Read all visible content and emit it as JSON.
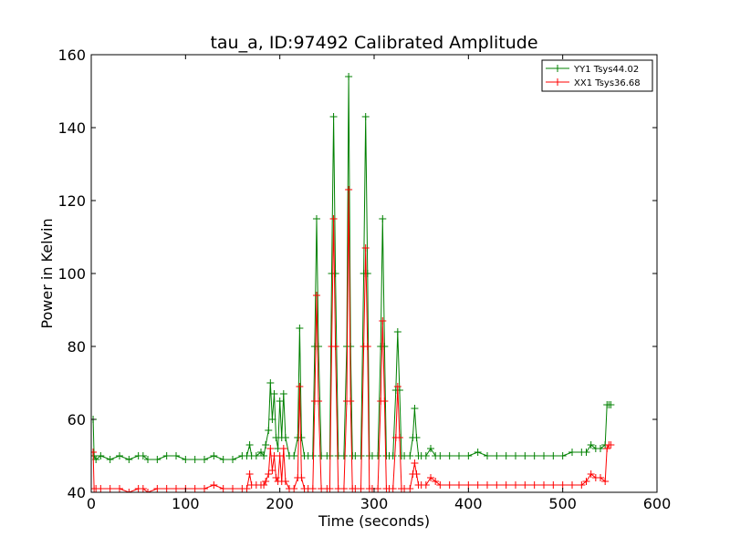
{
  "chart_data": {
    "type": "line",
    "title": "tau_a, ID:97492 Calibrated Amplitude",
    "xlabel": "Time (seconds)",
    "ylabel": "Power in Kelvin",
    "xlim": [
      0,
      600
    ],
    "ylim": [
      40,
      160
    ],
    "xticks": [
      0,
      100,
      200,
      300,
      400,
      500,
      600
    ],
    "yticks": [
      40,
      60,
      80,
      100,
      120,
      140,
      160
    ],
    "grid": false,
    "legend_position": "top-right",
    "marker": "+",
    "series": [
      {
        "name": "YY1 Tsys44.02",
        "color": "#008000",
        "x": [
          0,
          2,
          3,
          5,
          10,
          20,
          30,
          40,
          50,
          55,
          60,
          70,
          80,
          90,
          100,
          110,
          120,
          130,
          140,
          150,
          160,
          165,
          168,
          170,
          175,
          180,
          183,
          185,
          188,
          190,
          192,
          194,
          196,
          198,
          200,
          202,
          204,
          206,
          210,
          215,
          219,
          221,
          223,
          226,
          230,
          235,
          237,
          239,
          241,
          244,
          250,
          253,
          255,
          257,
          259,
          262,
          268,
          271,
          273,
          275,
          277,
          280,
          286,
          289,
          291,
          293,
          295,
          298,
          304,
          307,
          309,
          311,
          313,
          316,
          320,
          323,
          325,
          327,
          329,
          332,
          338,
          341,
          343,
          345,
          347,
          350,
          355,
          360,
          365,
          370,
          380,
          390,
          400,
          410,
          420,
          430,
          440,
          450,
          460,
          470,
          480,
          490,
          500,
          510,
          520,
          525,
          530,
          535,
          540,
          545,
          547,
          549,
          551
        ],
        "y": [
          60,
          60,
          50,
          49,
          50,
          49,
          50,
          49,
          50,
          50,
          49,
          49,
          50,
          50,
          49,
          49,
          49,
          50,
          49,
          49,
          50,
          50,
          53,
          50,
          50,
          51,
          50,
          53,
          57,
          70,
          60,
          67,
          55,
          52,
          65,
          55,
          67,
          55,
          50,
          50,
          55,
          85,
          55,
          50,
          50,
          50,
          80,
          115,
          80,
          50,
          50,
          50,
          100,
          143,
          100,
          50,
          50,
          80,
          154,
          80,
          50,
          50,
          50,
          100,
          143,
          100,
          50,
          50,
          50,
          80,
          115,
          80,
          50,
          50,
          50,
          68,
          84,
          68,
          50,
          50,
          50,
          55,
          63,
          55,
          50,
          50,
          50,
          52,
          50,
          50,
          50,
          50,
          50,
          51,
          50,
          50,
          50,
          50,
          50,
          50,
          50,
          50,
          50,
          51,
          51,
          51,
          53,
          52,
          52,
          53,
          64,
          64,
          64
        ]
      },
      {
        "name": "XX1 Tsys36.68",
        "color": "#ff0000",
        "x": [
          0,
          2,
          3,
          5,
          10,
          20,
          30,
          40,
          50,
          55,
          60,
          70,
          80,
          90,
          100,
          110,
          120,
          130,
          140,
          150,
          160,
          165,
          168,
          170,
          175,
          180,
          183,
          185,
          188,
          190,
          192,
          194,
          196,
          198,
          200,
          202,
          204,
          206,
          210,
          215,
          219,
          221,
          223,
          226,
          230,
          235,
          237,
          239,
          241,
          244,
          250,
          253,
          255,
          257,
          259,
          262,
          268,
          271,
          273,
          275,
          277,
          280,
          286,
          289,
          291,
          293,
          295,
          298,
          304,
          307,
          309,
          311,
          313,
          316,
          320,
          323,
          325,
          327,
          329,
          332,
          338,
          341,
          343,
          345,
          347,
          350,
          355,
          360,
          365,
          370,
          380,
          390,
          400,
          410,
          420,
          430,
          440,
          450,
          460,
          470,
          480,
          490,
          500,
          510,
          520,
          525,
          530,
          535,
          540,
          545,
          547,
          549,
          551
        ],
        "y": [
          51,
          51,
          41,
          41,
          41,
          41,
          41,
          40,
          41,
          41,
          40,
          41,
          41,
          41,
          41,
          41,
          41,
          42,
          41,
          41,
          41,
          41,
          45,
          42,
          42,
          42,
          42,
          43,
          45,
          52,
          46,
          50,
          44,
          43,
          50,
          43,
          52,
          43,
          41,
          41,
          44,
          69,
          44,
          41,
          41,
          41,
          65,
          94,
          65,
          41,
          41,
          41,
          80,
          115,
          80,
          41,
          41,
          65,
          123,
          65,
          41,
          41,
          41,
          80,
          107,
          80,
          41,
          41,
          41,
          65,
          87,
          65,
          41,
          41,
          41,
          55,
          69,
          55,
          41,
          41,
          41,
          45,
          48,
          45,
          42,
          42,
          42,
          44,
          43,
          42,
          42,
          42,
          42,
          42,
          42,
          42,
          42,
          42,
          42,
          42,
          42,
          42,
          42,
          42,
          42,
          43,
          45,
          44,
          44,
          43,
          52,
          53,
          53
        ]
      }
    ]
  }
}
